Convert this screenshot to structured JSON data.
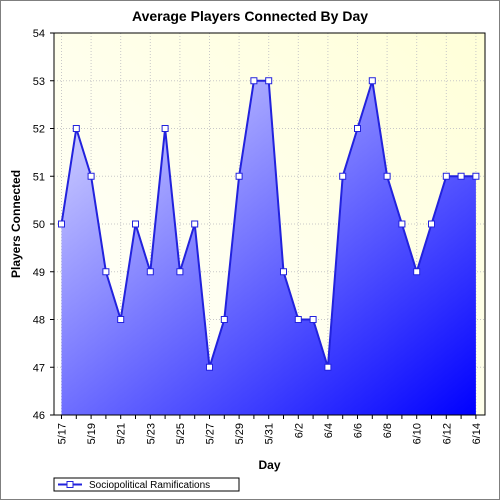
{
  "chart_data": {
    "type": "area",
    "title": "Average Players Connected By Day",
    "xlabel": "Day",
    "ylabel": "Players Connected",
    "ylim": [
      46,
      54
    ],
    "yticks": [
      46,
      47,
      48,
      49,
      50,
      51,
      52,
      53,
      54
    ],
    "x_tick_labels": [
      "5/17",
      "5/19",
      "5/21",
      "5/23",
      "5/25",
      "5/27",
      "5/29",
      "5/31",
      "6/2",
      "6/4",
      "6/6",
      "6/8",
      "6/10",
      "6/12",
      "6/14"
    ],
    "grid": true,
    "legend_position": "bottom-left",
    "colors": {
      "line": "#2222dd",
      "fill_light": "#dcdcff",
      "fill_dark": "#0000ff",
      "plot_bg_light": "#ffffd8",
      "marker_fill": "#ffffff"
    },
    "x": [
      "5/17",
      "5/18",
      "5/19",
      "5/20",
      "5/21",
      "5/22",
      "5/23",
      "5/24",
      "5/25",
      "5/26",
      "5/27",
      "5/28",
      "5/29",
      "5/30",
      "5/31",
      "6/1",
      "6/2",
      "6/3",
      "6/4",
      "6/5",
      "6/6",
      "6/7",
      "6/8",
      "6/9",
      "6/10",
      "6/11",
      "6/12",
      "6/13",
      "6/14"
    ],
    "series": [
      {
        "name": "Sociopolitical Ramifications",
        "values": [
          50,
          52,
          51,
          49,
          48,
          50,
          49,
          52,
          49,
          50,
          47,
          48,
          51,
          53,
          53,
          49,
          48,
          48,
          47,
          51,
          52,
          53,
          51,
          50,
          49,
          50,
          51,
          51,
          51
        ]
      }
    ]
  }
}
